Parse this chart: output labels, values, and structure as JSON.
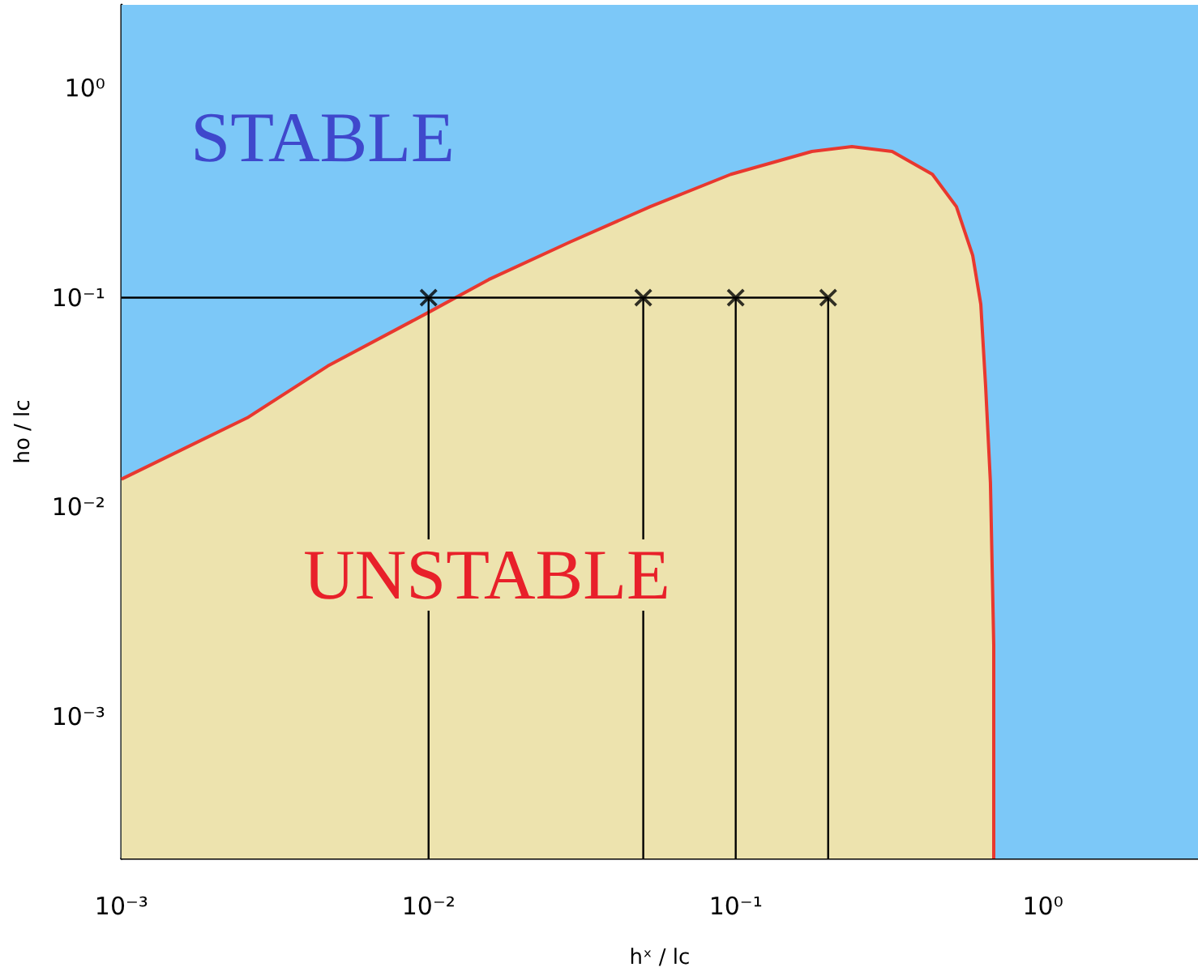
{
  "chart_data": {
    "type": "area",
    "xlabel": "hˣ / lc",
    "ylabel": "ho / lc",
    "log": "xy",
    "xlim": [
      0.001,
      3.2
    ],
    "ylim": [
      0.00021,
      2.5
    ],
    "xticks": [
      {
        "value": 0.001,
        "label": "10⁻³"
      },
      {
        "value": 0.002,
        "label": null
      },
      {
        "value": 0.003,
        "label": null
      },
      {
        "value": 0.004,
        "label": null
      },
      {
        "value": 0.005,
        "label": null
      },
      {
        "value": 0.006,
        "label": null
      },
      {
        "value": 0.007,
        "label": null
      },
      {
        "value": 0.008,
        "label": null
      },
      {
        "value": 0.009,
        "label": null
      },
      {
        "value": 0.01,
        "label": "10⁻²"
      },
      {
        "value": 0.02,
        "label": null
      },
      {
        "value": 0.03,
        "label": null
      },
      {
        "value": 0.04,
        "label": null
      },
      {
        "value": 0.05,
        "label": null
      },
      {
        "value": 0.06,
        "label": null
      },
      {
        "value": 0.07,
        "label": null
      },
      {
        "value": 0.08,
        "label": null
      },
      {
        "value": 0.09,
        "label": null
      },
      {
        "value": 0.1,
        "label": "10⁻¹"
      },
      {
        "value": 0.2,
        "label": null
      },
      {
        "value": 0.3,
        "label": null
      },
      {
        "value": 0.4,
        "label": null
      },
      {
        "value": 0.5,
        "label": null
      },
      {
        "value": 0.6,
        "label": null
      },
      {
        "value": 0.7,
        "label": null
      },
      {
        "value": 0.8,
        "label": null
      },
      {
        "value": 0.9,
        "label": null
      },
      {
        "value": 1,
        "label": "10⁰"
      },
      {
        "value": 2,
        "label": null
      },
      {
        "value": 3,
        "label": null
      }
    ],
    "yticks": [
      {
        "value": 0.0003,
        "label": null
      },
      {
        "value": 0.0004,
        "label": null
      },
      {
        "value": 0.0005,
        "label": null
      },
      {
        "value": 0.0006,
        "label": null
      },
      {
        "value": 0.0007,
        "label": null
      },
      {
        "value": 0.0008,
        "label": null
      },
      {
        "value": 0.0009,
        "label": null
      },
      {
        "value": 0.001,
        "label": "10⁻³"
      },
      {
        "value": 0.002,
        "label": null
      },
      {
        "value": 0.003,
        "label": null
      },
      {
        "value": 0.004,
        "label": null
      },
      {
        "value": 0.005,
        "label": null
      },
      {
        "value": 0.006,
        "label": null
      },
      {
        "value": 0.007,
        "label": null
      },
      {
        "value": 0.008,
        "label": null
      },
      {
        "value": 0.009,
        "label": null
      },
      {
        "value": 0.01,
        "label": "10⁻²"
      },
      {
        "value": 0.02,
        "label": null
      },
      {
        "value": 0.03,
        "label": null
      },
      {
        "value": 0.04,
        "label": null
      },
      {
        "value": 0.05,
        "label": null
      },
      {
        "value": 0.06,
        "label": null
      },
      {
        "value": 0.07,
        "label": null
      },
      {
        "value": 0.08,
        "label": null
      },
      {
        "value": 0.09,
        "label": null
      },
      {
        "value": 0.1,
        "label": "10⁻¹"
      },
      {
        "value": 0.2,
        "label": null
      },
      {
        "value": 0.3,
        "label": null
      },
      {
        "value": 0.4,
        "label": null
      },
      {
        "value": 0.5,
        "label": null
      },
      {
        "value": 0.6,
        "label": null
      },
      {
        "value": 0.7,
        "label": null
      },
      {
        "value": 0.8,
        "label": null
      },
      {
        "value": 0.9,
        "label": null
      },
      {
        "value": 1,
        "label": "10⁰"
      },
      {
        "value": 2,
        "label": null
      }
    ],
    "bands": [
      {
        "axis": "x",
        "from": 0.001,
        "to": 3.2,
        "color": "#7cc8f8"
      }
    ],
    "series": [
      {
        "color": "#ede3ae",
        "x": [
          0.001,
          0.00257,
          0.0047,
          0.01,
          0.0157,
          0.0288,
          0.0527,
          0.0964,
          0.177,
          0.239,
          0.323,
          0.437,
          0.523,
          0.591,
          0.628,
          0.651,
          0.675,
          0.692,
          0.692
        ],
        "values": [
          0.0136,
          0.0267,
          0.0472,
          0.0851,
          0.122,
          0.184,
          0.272,
          0.388,
          0.499,
          0.526,
          0.499,
          0.388,
          0.272,
          0.159,
          0.093,
          0.038,
          0.0131,
          0.0022,
          0.00021
        ]
      },
      {
        "type": "line",
        "color": "#000000",
        "x": [
          0.001,
          0.2
        ],
        "values": [
          0.1,
          0.1
        ]
      },
      {
        "type": "line",
        "color": "#000000",
        "x": [
          0.01,
          0.01
        ],
        "values": [
          0.1,
          0.00021
        ]
      },
      {
        "type": "line",
        "color": "#000000",
        "x": [
          0.05,
          0.05
        ],
        "values": [
          0.1,
          0.00021
        ]
      },
      {
        "type": "line",
        "color": "#000000",
        "x": [
          0.1,
          0.1
        ],
        "values": [
          0.1,
          0.00021
        ]
      },
      {
        "type": "line",
        "color": "#000000",
        "x": [
          0.2,
          0.2
        ],
        "values": [
          0.1,
          0.00021
        ]
      },
      {
        "type": "scatter",
        "marker": "cross",
        "color": "#000000",
        "x": [
          0.01,
          0.05,
          0.1,
          0.2
        ],
        "values": [
          0.1,
          0.1,
          0.1,
          0.1
        ]
      }
    ],
    "annotations": [
      "STABLE",
      "UNSTABLE"
    ]
  }
}
